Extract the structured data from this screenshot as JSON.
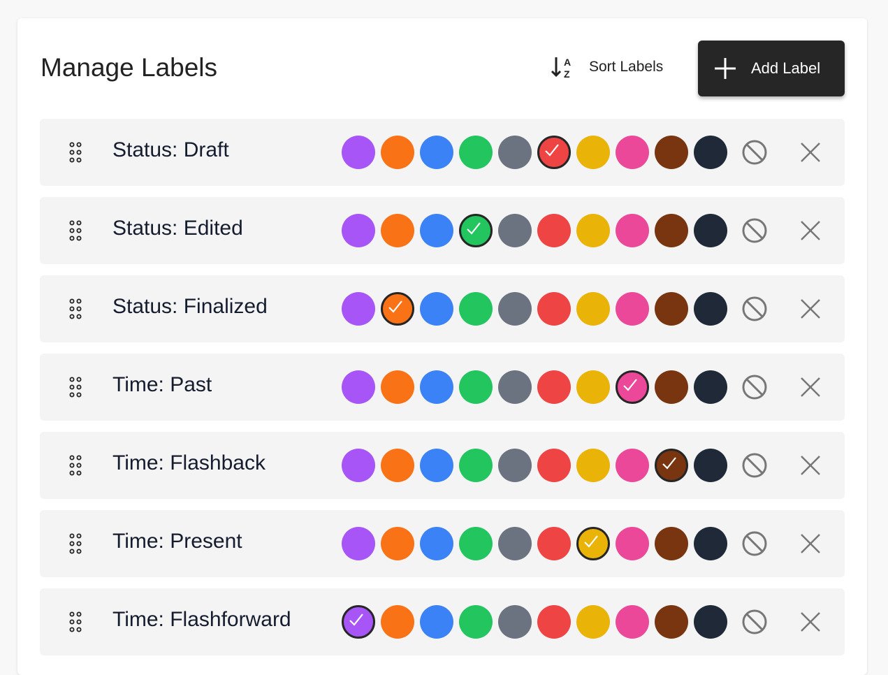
{
  "header": {
    "title": "Manage Labels",
    "sort_label": "Sort Labels",
    "add_label": "Add Label"
  },
  "palette": [
    {
      "name": "purple",
      "color": "#a855f7"
    },
    {
      "name": "orange",
      "color": "#f97316"
    },
    {
      "name": "blue",
      "color": "#3b82f6"
    },
    {
      "name": "green",
      "color": "#22c55e"
    },
    {
      "name": "gray",
      "color": "#6b7280"
    },
    {
      "name": "red",
      "color": "#ef4444"
    },
    {
      "name": "yellow",
      "color": "#eab308"
    },
    {
      "name": "pink",
      "color": "#ec4899"
    },
    {
      "name": "brown",
      "color": "#78350f"
    },
    {
      "name": "navy",
      "color": "#1f2937"
    }
  ],
  "labels": [
    {
      "name": "Status: Draft",
      "selected": "red"
    },
    {
      "name": "Status: Edited",
      "selected": "green"
    },
    {
      "name": "Status: Finalized",
      "selected": "orange"
    },
    {
      "name": "Time: Past",
      "selected": "pink"
    },
    {
      "name": "Time: Flashback",
      "selected": "brown"
    },
    {
      "name": "Time: Present",
      "selected": "yellow"
    },
    {
      "name": "Time: Flashforward",
      "selected": "purple"
    }
  ]
}
